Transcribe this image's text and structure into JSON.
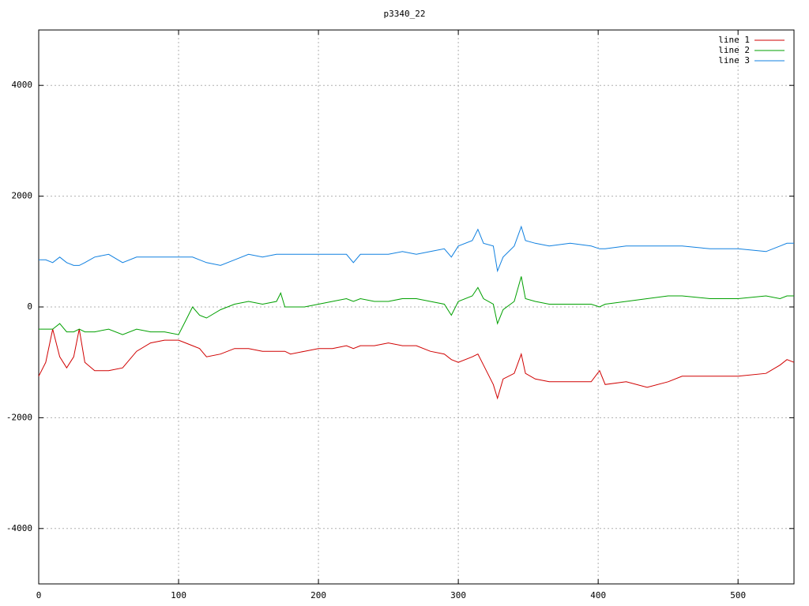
{
  "chart_data": {
    "type": "line",
    "title": "p3340_22",
    "x": [
      0,
      5,
      10,
      15,
      20,
      25,
      29,
      33,
      40,
      50,
      60,
      70,
      80,
      90,
      100,
      105,
      110,
      115,
      120,
      130,
      140,
      150,
      160,
      170,
      173,
      176,
      180,
      190,
      200,
      210,
      220,
      225,
      230,
      240,
      250,
      260,
      270,
      280,
      290,
      295,
      300,
      310,
      314,
      318,
      325,
      328,
      332,
      340,
      345,
      348,
      355,
      365,
      380,
      395,
      401,
      405,
      420,
      435,
      450,
      460,
      480,
      500,
      520,
      530,
      535,
      540
    ],
    "series": [
      {
        "name": "line 1",
        "color": "#d00000",
        "values": [
          -1250,
          -1000,
          -400,
          -900,
          -1100,
          -900,
          -400,
          -1000,
          -1150,
          -1150,
          -1100,
          -800,
          -650,
          -600,
          -600,
          -650,
          -700,
          -750,
          -900,
          -850,
          -750,
          -750,
          -800,
          -800,
          -800,
          -800,
          -850,
          -800,
          -750,
          -750,
          -700,
          -750,
          -700,
          -700,
          -650,
          -700,
          -700,
          -800,
          -850,
          -950,
          -1000,
          -900,
          -850,
          -1050,
          -1400,
          -1650,
          -1300,
          -1200,
          -850,
          -1200,
          -1300,
          -1350,
          -1350,
          -1350,
          -1150,
          -1400,
          -1350,
          -1450,
          -1350,
          -1250,
          -1250,
          -1250,
          -1200,
          -1050,
          -950,
          -1000
        ]
      },
      {
        "name": "line 2",
        "color": "#00a000",
        "values": [
          -400,
          -400,
          -400,
          -300,
          -450,
          -450,
          -400,
          -450,
          -450,
          -400,
          -500,
          -400,
          -450,
          -450,
          -500,
          -250,
          0,
          -150,
          -200,
          -50,
          50,
          100,
          50,
          100,
          250,
          0,
          0,
          0,
          50,
          100,
          150,
          100,
          150,
          100,
          100,
          150,
          150,
          100,
          50,
          -150,
          100,
          200,
          350,
          150,
          50,
          -300,
          -50,
          100,
          550,
          150,
          100,
          50,
          50,
          50,
          0,
          50,
          100,
          150,
          200,
          200,
          150,
          150,
          200,
          150,
          200,
          200
        ]
      },
      {
        "name": "line 3",
        "color": "#1080e0",
        "values": [
          850,
          850,
          800,
          900,
          800,
          750,
          750,
          800,
          900,
          950,
          800,
          900,
          900,
          900,
          900,
          900,
          900,
          850,
          800,
          750,
          850,
          950,
          900,
          950,
          950,
          950,
          950,
          950,
          950,
          950,
          950,
          800,
          950,
          950,
          950,
          1000,
          950,
          1000,
          1050,
          900,
          1100,
          1200,
          1400,
          1150,
          1100,
          650,
          900,
          1100,
          1450,
          1200,
          1150,
          1100,
          1150,
          1100,
          1050,
          1050,
          1100,
          1100,
          1100,
          1100,
          1050,
          1050,
          1000,
          1100,
          1150,
          1150
        ]
      }
    ],
    "xlim": [
      0,
      540
    ],
    "ylim": [
      -5000,
      5000
    ],
    "xticks": [
      0,
      100,
      200,
      300,
      400,
      500
    ],
    "yticks": [
      -4000,
      -2000,
      0,
      2000,
      4000
    ],
    "grid": true,
    "legend": "top-right"
  }
}
